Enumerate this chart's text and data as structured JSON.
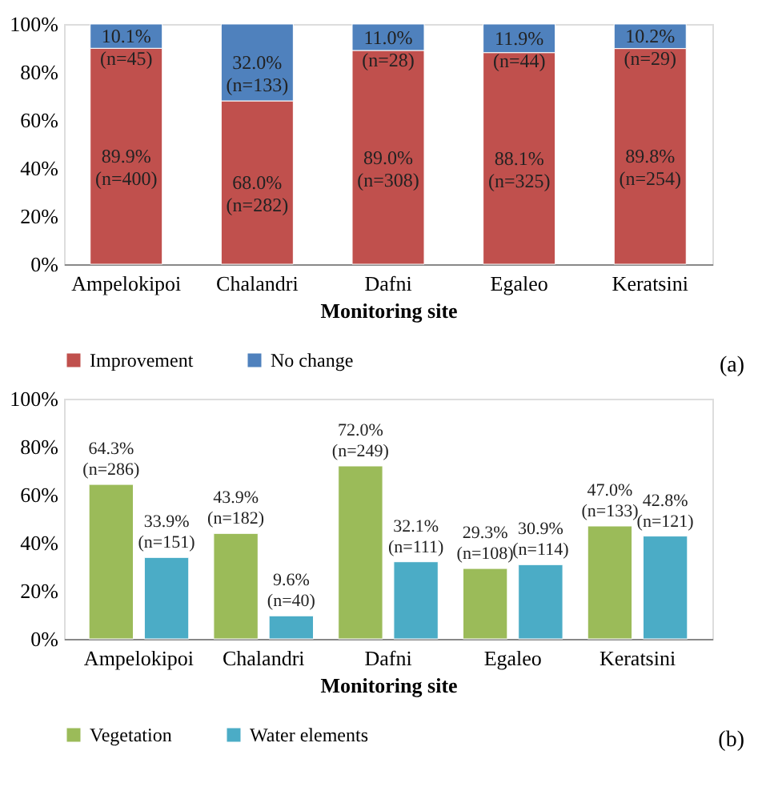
{
  "chart_data": [
    {
      "type": "bar",
      "stacked": true,
      "categories": [
        "Ampelokipoi",
        "Chalandri",
        "Dafni",
        "Egaleo",
        "Keratsini"
      ],
      "xlabel": "Monitoring site",
      "series": [
        {
          "name": "Improvement",
          "color": "#c0504d",
          "values": [
            89.9,
            68.0,
            89.0,
            88.1,
            89.8
          ],
          "value_labels": [
            "89.9%\n(n=400)",
            "68.0%\n(n=282)",
            "89.0%\n(n=308)",
            "88.1%\n(n=325)",
            "89.8%\n(n=254)"
          ]
        },
        {
          "name": "No change",
          "color": "#4f81bd",
          "values": [
            10.1,
            32.0,
            11.0,
            11.9,
            10.2
          ],
          "value_labels": [
            "10.1%\n(n=45)",
            "32.0%\n(n=133)",
            "11.0%\n(n=28)",
            "11.9%\n(n=44)",
            "10.2%\n(n=29)"
          ]
        }
      ],
      "ylim": [
        0,
        100
      ],
      "yticks": [
        {
          "value": 0,
          "label": "0%"
        },
        {
          "value": 20,
          "label": "20%"
        },
        {
          "value": 40,
          "label": "40%"
        },
        {
          "value": 60,
          "label": "60%"
        },
        {
          "value": 80,
          "label": "80%"
        },
        {
          "value": 100,
          "label": "100%"
        }
      ],
      "legend": "bottom",
      "annotations": [
        "(a)"
      ]
    },
    {
      "type": "bar",
      "categories": [
        "Ampelokipoi",
        "Chalandri",
        "Dafni",
        "Egaleo",
        "Keratsini"
      ],
      "xlabel": "Monitoring site",
      "series": [
        {
          "name": "Vegetation",
          "color": "#9bbb59",
          "values": [
            64.3,
            43.9,
            72.0,
            29.3,
            47.0
          ],
          "value_labels": [
            "64.3%\n(n=286)",
            "43.9%\n(n=182)",
            "72.0%\n(n=249)",
            "29.3%\n(n=108)",
            "47.0%\n(n=133)"
          ]
        },
        {
          "name": "Water elements",
          "color": "#4bacc6",
          "values": [
            33.9,
            9.6,
            32.1,
            30.9,
            42.8
          ],
          "value_labels": [
            "33.9%\n(n=151)",
            "9.6%\n(n=40)",
            "32.1%\n(n=111)",
            "30.9%\n(n=114)",
            "42.8%\n(n=121)"
          ]
        }
      ],
      "ylim": [
        0,
        100
      ],
      "yticks": [
        {
          "value": 0,
          "label": "0%"
        },
        {
          "value": 20,
          "label": "20%"
        },
        {
          "value": 40,
          "label": "40%"
        },
        {
          "value": 60,
          "label": "60%"
        },
        {
          "value": 80,
          "label": "80%"
        },
        {
          "value": 100,
          "label": "100%"
        }
      ],
      "legend": "bottom",
      "annotations": [
        "(b)"
      ]
    }
  ]
}
